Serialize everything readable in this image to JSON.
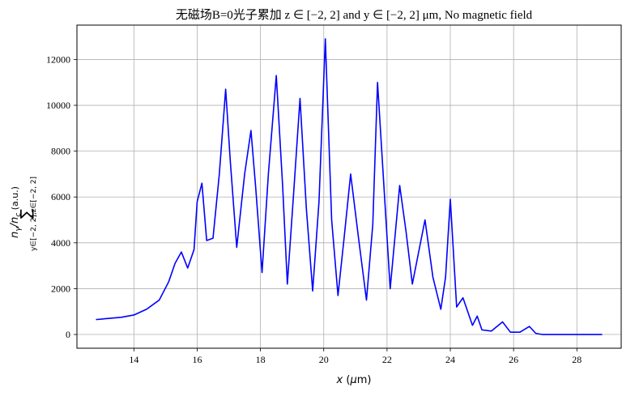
{
  "chart_data": {
    "type": "line",
    "title": "无磁场B=0光子累加 z ∈ [−2, 2] and y ∈ [−2, 2] μm, No magnetic field",
    "xlabel": "x (μm)",
    "ylabel": "∑ n_γ/n_c (a.u.)",
    "ylabel_parts": {
      "sum": "∑",
      "subscript": "y∈[−2, 2],z∈[−2, 2]",
      "main": "n",
      "main_sub": "γ",
      "slash": "/n",
      "den_sub": "c",
      "units": " (a.u.)"
    },
    "xlim": [
      12.2,
      29.4
    ],
    "ylim": [
      -600,
      13500
    ],
    "xticks": [
      14,
      16,
      18,
      20,
      22,
      24,
      26,
      28
    ],
    "yticks": [
      0,
      2000,
      4000,
      6000,
      8000,
      10000,
      12000
    ],
    "grid": true,
    "line_color": "#0000ff",
    "series": [
      {
        "x": [
          12.8,
          13.2,
          13.6,
          14.0,
          14.4,
          14.8,
          15.1,
          15.3,
          15.5,
          15.7,
          15.9,
          16.0,
          16.15,
          16.3,
          16.5,
          16.7,
          16.9,
          17.05,
          17.25,
          17.5,
          17.7,
          17.85,
          18.05,
          18.25,
          18.5,
          18.7,
          18.85,
          19.05,
          19.25,
          19.45,
          19.65,
          19.85,
          20.05,
          20.25,
          20.45,
          20.65,
          20.85,
          21.1,
          21.35,
          21.55,
          21.7,
          21.9,
          22.1,
          22.4,
          22.6,
          22.8,
          23.0,
          23.2,
          23.45,
          23.7,
          23.85,
          24.0,
          24.2,
          24.4,
          24.55,
          24.7,
          24.85,
          25.0,
          25.3,
          25.65,
          25.9,
          26.2,
          26.5,
          26.7,
          26.9,
          27.5,
          28.0,
          28.5,
          28.8
        ],
        "y": [
          650,
          700,
          750,
          850,
          1100,
          1500,
          2300,
          3100,
          3600,
          2900,
          3700,
          5800,
          6600,
          4100,
          4200,
          7000,
          10700,
          7500,
          3800,
          7000,
          8900,
          6400,
          2700,
          7000,
          11300,
          6500,
          2200,
          6200,
          10300,
          5500,
          1900,
          5800,
          12900,
          5000,
          1700,
          4300,
          7000,
          4200,
          1500,
          4800,
          11000,
          6500,
          2000,
          6500,
          4500,
          2200,
          3600,
          5000,
          2500,
          1100,
          2500,
          5900,
          1200,
          1600,
          1000,
          400,
          800,
          200,
          150,
          550,
          100,
          100,
          350,
          50,
          0,
          0,
          0,
          0,
          0
        ]
      }
    ]
  }
}
